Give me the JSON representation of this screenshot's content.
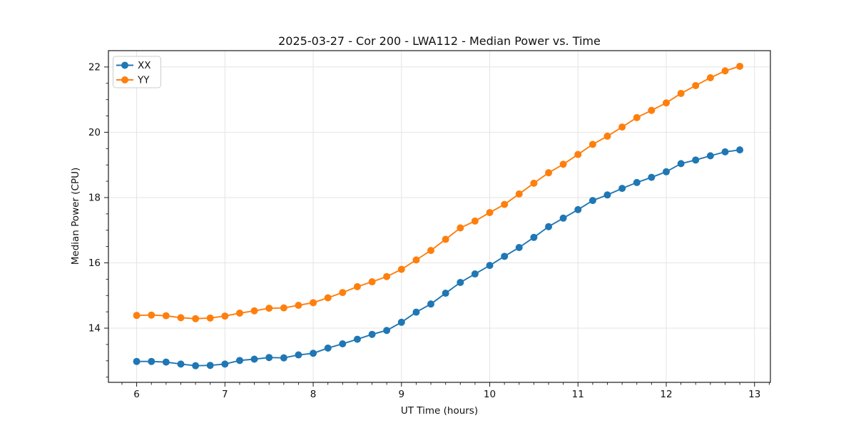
{
  "chart_data": {
    "type": "line",
    "title": "2025-03-27 - Cor 200 - LWA112 - Median Power vs. Time",
    "xlabel": "UT Time (hours)",
    "ylabel": "Median Power (CPU)",
    "xlim": [
      5.68,
      13.18
    ],
    "ylim": [
      12.34,
      22.5
    ],
    "x_ticks": [
      6,
      7,
      8,
      9,
      10,
      11,
      12,
      13
    ],
    "y_ticks": [
      14,
      16,
      18,
      20,
      22
    ],
    "grid": true,
    "legend_position": "upper left",
    "marker": "circle",
    "x": [
      6.0,
      6.167,
      6.333,
      6.5,
      6.667,
      6.833,
      7.0,
      7.167,
      7.333,
      7.5,
      7.667,
      7.833,
      8.0,
      8.167,
      8.333,
      8.5,
      8.667,
      8.833,
      9.0,
      9.167,
      9.333,
      9.5,
      9.667,
      9.833,
      10.0,
      10.167,
      10.333,
      10.5,
      10.667,
      10.833,
      11.0,
      11.167,
      11.333,
      11.5,
      11.667,
      11.833,
      12.0,
      12.167,
      12.333,
      12.5,
      12.667,
      12.833
    ],
    "series": [
      {
        "name": "XX",
        "color": "#1f77b4",
        "values": [
          12.98,
          12.98,
          12.96,
          12.9,
          12.85,
          12.86,
          12.9,
          13.01,
          13.05,
          13.1,
          13.09,
          13.18,
          13.23,
          13.39,
          13.52,
          13.66,
          13.81,
          13.93,
          14.18,
          14.49,
          14.74,
          15.07,
          15.4,
          15.66,
          15.92,
          16.2,
          16.47,
          16.78,
          17.11,
          17.37,
          17.63,
          17.91,
          18.08,
          18.28,
          18.46,
          18.62,
          18.79,
          19.04,
          19.15,
          19.28,
          19.4,
          19.46
        ]
      },
      {
        "name": "YY",
        "color": "#ff7f0e",
        "values": [
          14.39,
          14.4,
          14.38,
          14.32,
          14.29,
          14.31,
          14.37,
          14.46,
          14.53,
          14.61,
          14.62,
          14.7,
          14.78,
          14.93,
          15.09,
          15.27,
          15.42,
          15.58,
          15.8,
          16.09,
          16.38,
          16.72,
          17.07,
          17.28,
          17.54,
          17.79,
          18.11,
          18.44,
          18.76,
          19.02,
          19.32,
          19.63,
          19.88,
          20.16,
          20.45,
          20.67,
          20.9,
          21.19,
          21.43,
          21.67,
          21.88,
          22.02
        ]
      }
    ],
    "style": {
      "grid_color": "#e4e4e4",
      "spine_color": "#1a1a1a",
      "tick_color": "#1a1a1a",
      "legend_border": "#cccccc",
      "background": "#ffffff"
    }
  }
}
